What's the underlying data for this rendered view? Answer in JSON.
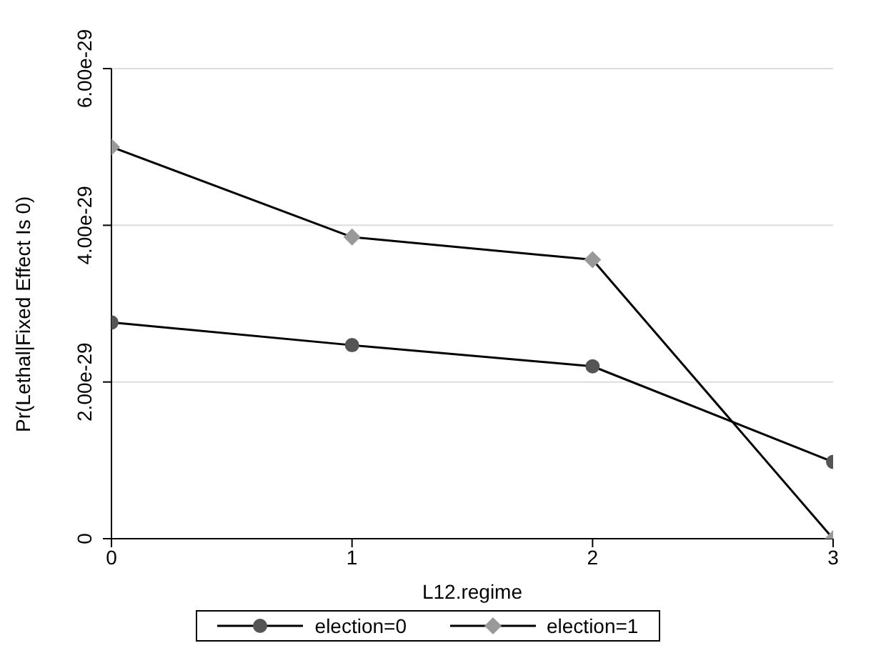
{
  "chart_data": {
    "type": "line",
    "xlabel": "L12.regime",
    "ylabel": "Pr(Lethal|Fixed Effect Is 0)",
    "x": [
      0,
      1,
      2,
      3
    ],
    "xlim": [
      0,
      3
    ],
    "xticks": [
      0,
      1,
      2,
      3
    ],
    "ylim": [
      0,
      6e-29
    ],
    "yticks": [
      {
        "value": 0,
        "label": "0"
      },
      {
        "value": 2e-29,
        "label": "2.00e-29"
      },
      {
        "value": 4e-29,
        "label": "4.00e-29"
      },
      {
        "value": 6e-29,
        "label": "6.00e-29"
      }
    ],
    "grid": "y",
    "legend": "bottom",
    "series": [
      {
        "name": "election=0",
        "color": "#555555",
        "marker": "circle",
        "values": [
          2.76e-29,
          2.47e-29,
          2.2e-29,
          9.8e-30
        ]
      },
      {
        "name": "election=1",
        "color": "#999999",
        "marker": "diamond",
        "values": [
          5e-29,
          3.85e-29,
          3.56e-29,
          0
        ]
      }
    ]
  }
}
